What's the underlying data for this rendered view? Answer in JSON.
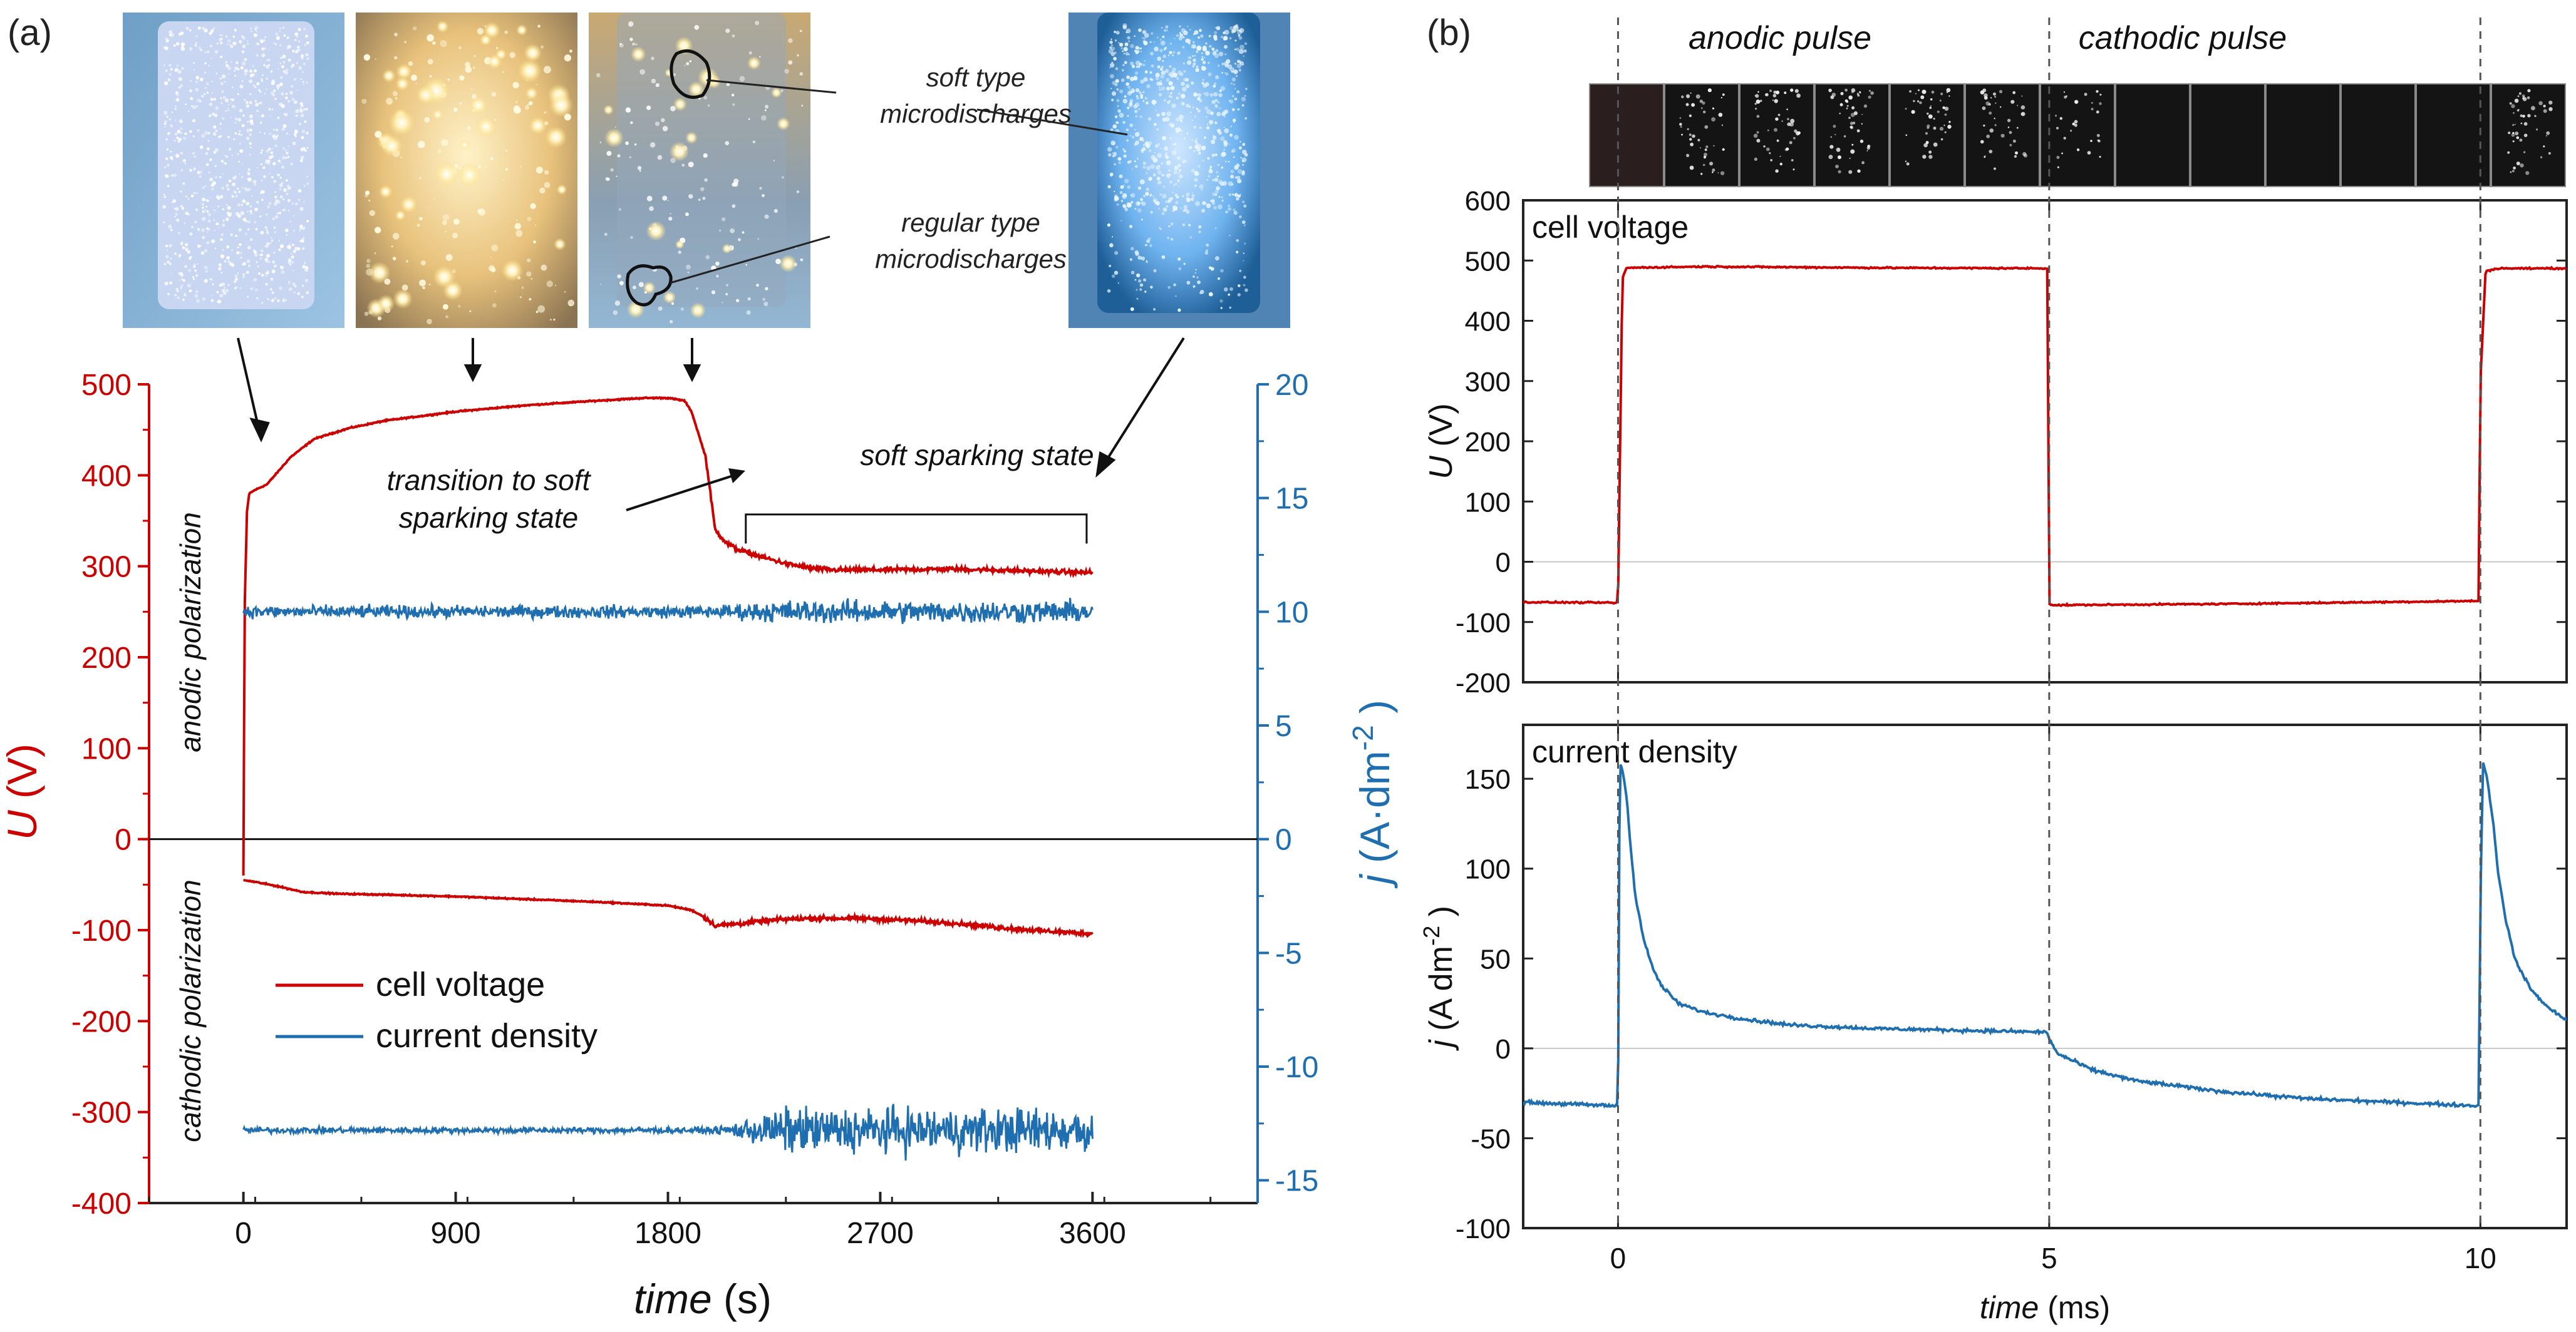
{
  "panel_a": {
    "label": "(a)",
    "photo_callouts": {
      "soft": [
        "soft type",
        "microdischarges"
      ],
      "regular": [
        "regular type",
        "microdischarges"
      ]
    },
    "annotations": {
      "transition": [
        "transition to soft",
        "sparking state"
      ],
      "soft_state": "soft sparking state",
      "anodic": "anodic polarization",
      "cathodic": "cathodic polarization"
    }
  },
  "panel_b": {
    "label": "(b)",
    "anodic_pulse": "anodic pulse",
    "cathodic_pulse": "cathodic pulse"
  },
  "colors": {
    "voltage": "#cc0000",
    "current": "#1f6fb0",
    "axis": "#222222"
  },
  "chart_data": [
    {
      "id": "a",
      "type": "line",
      "title": "",
      "xlabel": "time",
      "xunit": "(s)",
      "ylabel": "U",
      "yunit": "(V)",
      "y2label": "j",
      "y2unit": "(A·dm-2)",
      "xlim": [
        -400,
        4300
      ],
      "ylim": [
        -400,
        500
      ],
      "y2lim": [
        -16,
        20
      ],
      "xticks": [
        0,
        900,
        1800,
        2700,
        3600
      ],
      "yticks": [
        -400,
        -300,
        -200,
        -100,
        0,
        100,
        200,
        300,
        400,
        500
      ],
      "y2ticks": [
        -15,
        -10,
        -5,
        0,
        5,
        10,
        15,
        20
      ],
      "legend": {
        "position": "bottom-left",
        "entries": [
          "cell voltage",
          "current density"
        ]
      },
      "series": [
        {
          "name": "cell voltage",
          "axis": "left",
          "part": "anodic",
          "x": [
            0,
            5,
            15,
            25,
            50,
            100,
            150,
            200,
            300,
            450,
            600,
            900,
            1200,
            1500,
            1700,
            1800,
            1870,
            1900,
            1960,
            2000,
            2050,
            2100,
            2200,
            2300,
            2400,
            2500,
            2700,
            3000,
            3300,
            3600
          ],
          "y": [
            -40,
            250,
            360,
            380,
            384,
            390,
            405,
            420,
            440,
            452,
            460,
            470,
            477,
            482,
            485,
            485,
            482,
            470,
            420,
            340,
            325,
            318,
            310,
            303,
            298,
            296,
            296,
            297,
            295,
            293
          ]
        },
        {
          "name": "cell voltage",
          "axis": "left",
          "part": "cathodic",
          "x": [
            0,
            50,
            150,
            250,
            400,
            600,
            900,
            1200,
            1500,
            1800,
            1900,
            1950,
            2000,
            2100,
            2200,
            2300,
            2400,
            2600,
            2800,
            3000,
            3200,
            3400,
            3600
          ],
          "y": [
            -45,
            -47,
            -52,
            -58,
            -60,
            -61,
            -63,
            -66,
            -69,
            -73,
            -78,
            -85,
            -95,
            -93,
            -90,
            -88,
            -87,
            -87,
            -89,
            -92,
            -97,
            -101,
            -104
          ]
        },
        {
          "name": "current density",
          "axis": "right",
          "part": "anodic",
          "x": [
            0,
            3600
          ],
          "y": [
            10,
            10
          ],
          "noise": [
            0.25,
            0.45
          ]
        },
        {
          "name": "current density",
          "axis": "right",
          "part": "cathodic",
          "x": [
            0,
            3600
          ],
          "y": [
            -12.8,
            -12.8
          ],
          "noise": [
            0.12,
            0.9
          ]
        }
      ]
    },
    {
      "id": "b-voltage",
      "type": "line",
      "title": "cell voltage",
      "xlabel": "",
      "ylabel": "U",
      "yunit": "(V)",
      "xlim": [
        -1.1,
        11.0
      ],
      "ylim": [
        -200,
        600
      ],
      "yticks": [
        -200,
        -100,
        0,
        100,
        200,
        300,
        400,
        500,
        600
      ],
      "series": [
        {
          "name": "cell voltage",
          "x": [
            -1.1,
            -0.02,
            0.0,
            0.05,
            0.1,
            1.0,
            3.0,
            4.98,
            5.0,
            5.05,
            7.0,
            9.98,
            10.0,
            10.06,
            10.2,
            11.0
          ],
          "y": [
            -67,
            -68,
            -65,
            470,
            488,
            490,
            488,
            487,
            -70,
            -72,
            -70,
            -65,
            300,
            482,
            487,
            487
          ]
        }
      ]
    },
    {
      "id": "b-current",
      "type": "line",
      "title": "current density",
      "xlabel": "time",
      "xunit": "(ms)",
      "ylabel": "j",
      "yunit": "(A dm-2)",
      "xlim": [
        -1.1,
        11.0
      ],
      "ylim": [
        -100,
        180
      ],
      "xticks": [
        0,
        5,
        10
      ],
      "yticks": [
        -100,
        -50,
        0,
        50,
        100,
        150
      ],
      "series": [
        {
          "name": "current density",
          "x": [
            -1.1,
            -0.02,
            0.0,
            0.02,
            0.05,
            0.1,
            0.15,
            0.2,
            0.3,
            0.4,
            0.5,
            0.7,
            1.0,
            1.5,
            2.0,
            3.0,
            4.0,
            4.98,
            5.0,
            5.1,
            5.5,
            6.0,
            7.0,
            8.0,
            9.0,
            9.98,
            10.0,
            10.03,
            10.08,
            10.15,
            10.2,
            10.3,
            10.4,
            10.5,
            10.6,
            10.8,
            11.0
          ],
          "y": [
            -30,
            -32,
            -30,
            160,
            155,
            140,
            110,
            85,
            60,
            45,
            35,
            25,
            20,
            16,
            13,
            11,
            10,
            9,
            5,
            -3,
            -12,
            -18,
            -24,
            -28,
            -30,
            -32,
            80,
            160,
            150,
            125,
            100,
            70,
            50,
            40,
            32,
            22,
            16
          ]
        }
      ]
    }
  ]
}
